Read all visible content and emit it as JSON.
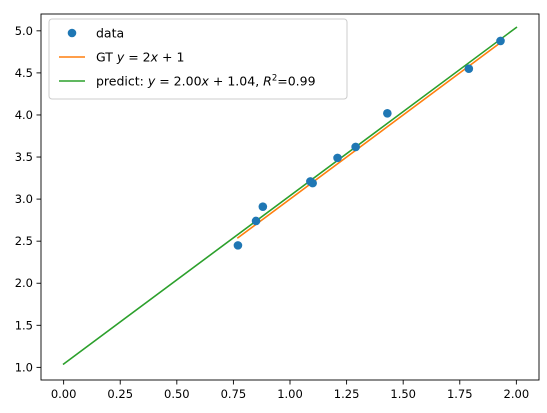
{
  "chart_data": {
    "type": "scatter",
    "title": "",
    "xlabel": "",
    "ylabel": "",
    "xlim": [
      -0.1,
      2.1
    ],
    "ylim": [
      0.85,
      5.2
    ],
    "x_ticks": [
      "0.00",
      "0.25",
      "0.50",
      "0.75",
      "1.00",
      "1.25",
      "1.50",
      "1.75",
      "2.00"
    ],
    "y_ticks": [
      "1.0",
      "1.5",
      "2.0",
      "2.5",
      "3.0",
      "3.5",
      "4.0",
      "4.5",
      "5.0"
    ],
    "grid": false,
    "legend_placement": "top-left",
    "series": [
      {
        "name": "data",
        "kind": "points",
        "color": "#1f77b4",
        "points": [
          [
            0.77,
            2.45
          ],
          [
            0.85,
            2.74
          ],
          [
            0.88,
            2.91
          ],
          [
            1.09,
            3.21
          ],
          [
            1.1,
            3.19
          ],
          [
            1.21,
            3.49
          ],
          [
            1.29,
            3.62
          ],
          [
            1.43,
            4.02
          ],
          [
            1.79,
            4.55
          ],
          [
            1.93,
            4.88
          ]
        ]
      },
      {
        "name": "GT",
        "legend_label": "GT y = 2x + 1",
        "kind": "line",
        "color": "#ff7f0e",
        "x": [
          0.77,
          1.93
        ],
        "y": [
          2.54,
          4.86
        ]
      },
      {
        "name": "predict",
        "legend_label": "predict: y = 2.00x + 1.04, R² = 0.99",
        "kind": "line",
        "color": "#2ca02c",
        "x": [
          0.0,
          2.0
        ],
        "y": [
          1.04,
          5.04
        ]
      }
    ],
    "legend": [
      {
        "series": "data",
        "prefix": "data"
      },
      {
        "series": "GT",
        "prefix": "GT "
      },
      {
        "series": "predict",
        "prefix": "predict: "
      }
    ]
  }
}
